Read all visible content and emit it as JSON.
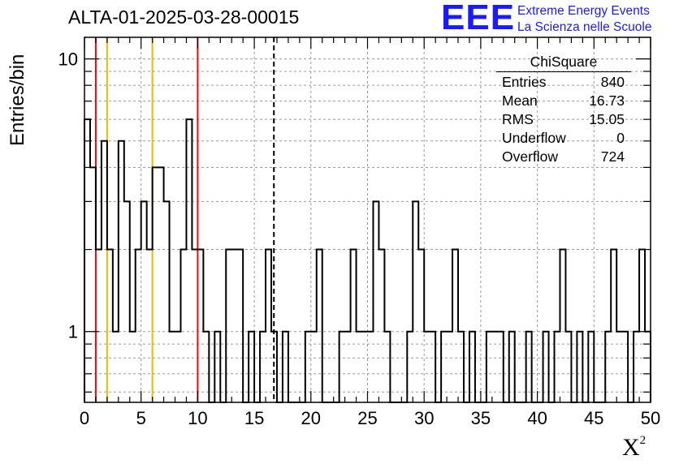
{
  "title": "ALTA-01-2025-03-28-00015",
  "logo": {
    "mark": "EEE",
    "line1": "Extreme Energy Events",
    "line2": "La Scienza nelle Scuole",
    "color": "#1a1aff"
  },
  "stats_box": {
    "name": "ChiSquare",
    "rows": [
      {
        "label": "Entries",
        "value": "840"
      },
      {
        "label": "Mean",
        "value": "16.73"
      },
      {
        "label": "RMS",
        "value": "15.05"
      },
      {
        "label": "Underflow",
        "value": "0"
      },
      {
        "label": "Overflow",
        "value": "724"
      }
    ]
  },
  "chart_data": {
    "type": "step-histogram",
    "title": "ALTA-01-2025-03-28-00015",
    "xlabel": "X",
    "xlabel_superscript": "2",
    "ylabel": "Entries/bin",
    "xlim": [
      0,
      50
    ],
    "ylim": [
      0.55,
      12
    ],
    "yscale": "log",
    "grid": true,
    "bin_width": 0.5,
    "x_ticks": [
      "0",
      "5",
      "10",
      "15",
      "20",
      "25",
      "30",
      "35",
      "40",
      "45",
      "50"
    ],
    "y_ticks": [
      "1",
      "10"
    ],
    "counts": [
      6,
      4,
      2,
      5,
      2,
      1,
      5,
      3,
      1,
      2,
      3,
      2,
      4,
      4,
      3,
      1,
      1,
      2,
      6,
      2,
      2,
      1,
      0,
      1,
      0,
      2,
      2,
      2,
      0,
      1,
      0,
      1,
      2,
      1,
      0,
      1,
      0,
      0,
      0,
      1,
      1,
      2,
      0,
      0,
      0,
      1,
      1,
      2,
      1,
      1,
      1,
      3,
      2,
      1,
      0,
      0,
      0,
      1,
      3,
      2,
      1,
      1,
      0,
      1,
      1,
      2,
      1,
      0,
      1,
      0,
      0,
      1,
      1,
      1,
      0,
      1,
      0,
      0,
      1,
      0,
      0,
      1,
      0,
      1,
      2,
      1,
      0,
      1,
      0,
      1,
      0,
      0,
      1,
      2,
      1,
      1,
      0,
      1,
      2,
      1
    ],
    "vertical_lines": [
      {
        "x": 1,
        "color": "#dd1111",
        "style": "solid"
      },
      {
        "x": 2,
        "color": "#f2b700",
        "style": "solid"
      },
      {
        "x": 6,
        "color": "#f2b700",
        "style": "solid"
      },
      {
        "x": 10,
        "color": "#dd1111",
        "style": "solid"
      },
      {
        "x": 16.73,
        "color": "#000000",
        "style": "dashed"
      }
    ]
  }
}
